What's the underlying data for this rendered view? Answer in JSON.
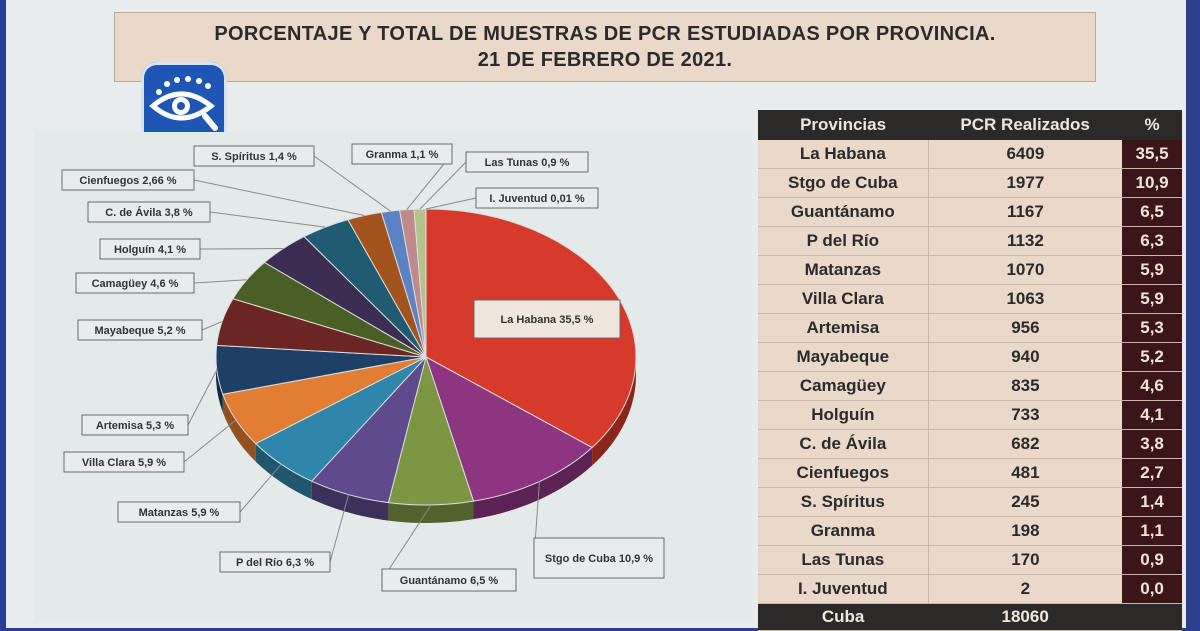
{
  "title": {
    "line1": "PORCENTAJE Y TOTAL DE MUESTRAS DE PCR ESTUDIADAS POR PROVINCIA.",
    "line2": "21 DE FEBRERO DE 2021."
  },
  "logo": {
    "icon": "eye-icon"
  },
  "table": {
    "headers": [
      "Provincias",
      "PCR Realizados",
      "%"
    ],
    "rows": [
      [
        "La Habana",
        "6409",
        "35,5"
      ],
      [
        "Stgo de Cuba",
        "1977",
        "10,9"
      ],
      [
        "Guantánamo",
        "1167",
        "6,5"
      ],
      [
        "P del Río",
        "1132",
        "6,3"
      ],
      [
        "Matanzas",
        "1070",
        "5,9"
      ],
      [
        "Villa Clara",
        "1063",
        "5,9"
      ],
      [
        "Artemisa",
        "956",
        "5,3"
      ],
      [
        "Mayabeque",
        "940",
        "5,2"
      ],
      [
        "Camagüey",
        "835",
        "4,6"
      ],
      [
        "Holguín",
        "733",
        "4,1"
      ],
      [
        "C. de Ávila",
        "682",
        "3,8"
      ],
      [
        "Cienfuegos",
        "481",
        "2,7"
      ],
      [
        "S. Spíritus",
        "245",
        "1,4"
      ],
      [
        "Granma",
        "198",
        "1,1"
      ],
      [
        "Las Tunas",
        "170",
        "0,9"
      ],
      [
        "I. Juventud",
        "2",
        "0,0"
      ]
    ],
    "total": [
      "Cuba",
      "18060",
      ""
    ]
  },
  "chart_data": {
    "type": "pie",
    "title": "PORCENTAJE Y TOTAL DE MUESTRAS DE PCR ESTUDIADAS POR PROVINCIA. 21 DE FEBRERO DE 2021.",
    "slices": [
      {
        "name": "La Habana",
        "value": 35.5,
        "label": "La Habana 35,5 %",
        "color": "#d63a2a"
      },
      {
        "name": "Stgo de Cuba",
        "value": 10.9,
        "label": "Stgo de Cuba 10,9 %",
        "color": "#8d3580"
      },
      {
        "name": "Guantánamo",
        "value": 6.5,
        "label": "Guantánamo 6,5 %",
        "color": "#7c9643"
      },
      {
        "name": "P del Río",
        "value": 6.3,
        "label": "P del Río 6,3 %",
        "color": "#5e4a8c"
      },
      {
        "name": "Matanzas",
        "value": 5.9,
        "label": "Matanzas 5,9 %",
        "color": "#2f86aa"
      },
      {
        "name": "Villa Clara",
        "value": 5.9,
        "label": "Villa Clara 5,9 %",
        "color": "#e27d34"
      },
      {
        "name": "Artemisa",
        "value": 5.3,
        "label": "Artemisa 5,3 %",
        "color": "#1e3f66"
      },
      {
        "name": "Mayabeque",
        "value": 5.2,
        "label": "Mayabeque 5,2 %",
        "color": "#6b2523"
      },
      {
        "name": "Camagüey",
        "value": 4.6,
        "label": "Camagüey 4,6 %",
        "color": "#4a5f26"
      },
      {
        "name": "Holguín",
        "value": 4.1,
        "label": "Holguín 4,1 %",
        "color": "#3c2d52"
      },
      {
        "name": "C. de Ávila",
        "value": 3.8,
        "label": "C. de Ávila 3,8 %",
        "color": "#1f5c71"
      },
      {
        "name": "Cienfuegos",
        "value": 2.66,
        "label": "Cienfuegos 2,66 %",
        "color": "#a3531d"
      },
      {
        "name": "S. Spíritus",
        "value": 1.4,
        "label": "S. Spíritus 1,4 %",
        "color": "#5b82c3"
      },
      {
        "name": "Granma",
        "value": 1.1,
        "label": "Granma 1,1 %",
        "color": "#c08a8a"
      },
      {
        "name": "Las Tunas",
        "value": 0.9,
        "label": "Las Tunas 0,9 %",
        "color": "#b6c28e"
      },
      {
        "name": "I. Juventud",
        "value": 0.01,
        "label": "I. Juventud 0,01 %",
        "color": "#a08db5"
      }
    ]
  }
}
